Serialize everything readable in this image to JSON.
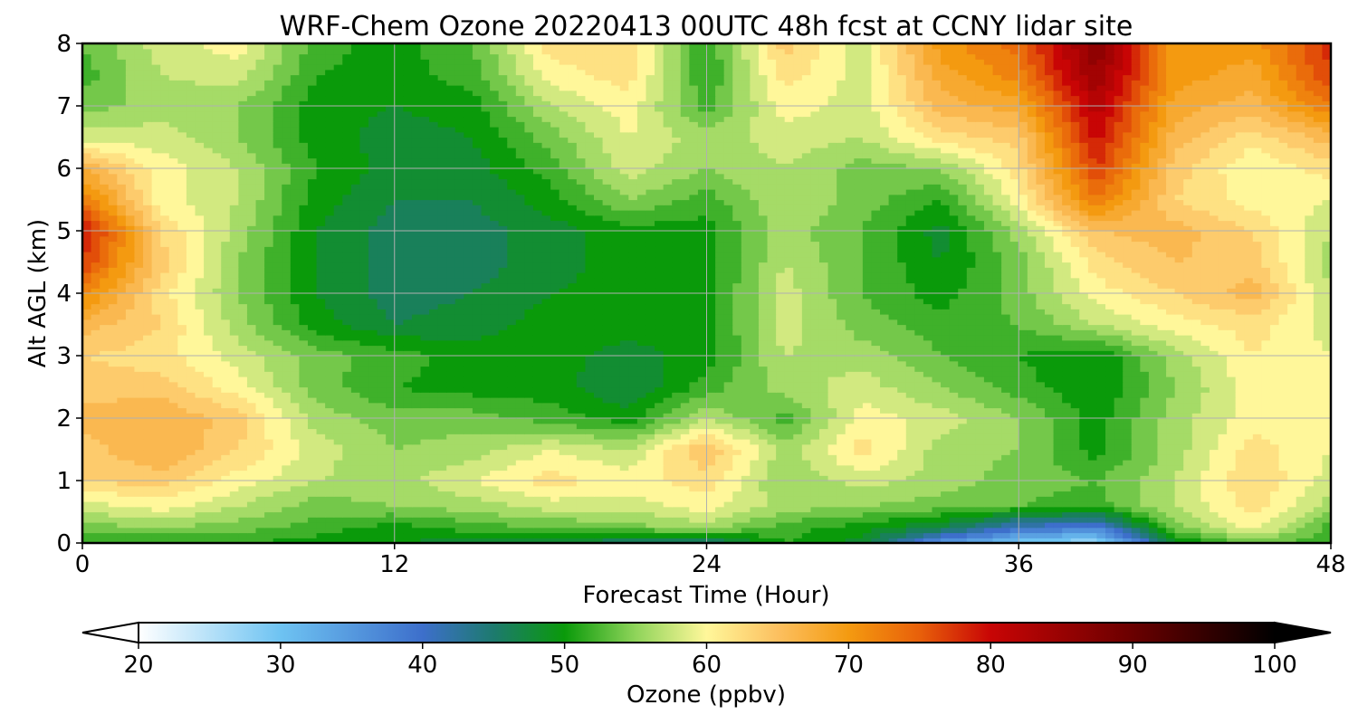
{
  "chart_data": {
    "type": "heatmap",
    "title": "WRF-Chem Ozone  20220413 00UTC 48h fcst at CCNY lidar site",
    "xlabel": "Forecast Time (Hour)",
    "ylabel": "Alt AGL (km)",
    "xlim": [
      0,
      48
    ],
    "ylim": [
      0,
      8
    ],
    "xticks": [
      0,
      12,
      24,
      36,
      48
    ],
    "yticks": [
      0,
      1,
      2,
      3,
      4,
      5,
      6,
      7,
      8
    ],
    "grid": true,
    "colorbar": {
      "label": "Ozone  (ppbv)",
      "range": [
        20,
        100
      ],
      "ticks": [
        20,
        30,
        40,
        50,
        60,
        70,
        80,
        90,
        100
      ],
      "extend": "both",
      "stops": [
        {
          "v": 20,
          "c": "#ffffff"
        },
        {
          "v": 30,
          "c": "#6ec3f2"
        },
        {
          "v": 40,
          "c": "#3d6fcb"
        },
        {
          "v": 45,
          "c": "#1d7a6e"
        },
        {
          "v": 50,
          "c": "#0a9a0a"
        },
        {
          "v": 55,
          "c": "#8fd45a"
        },
        {
          "v": 60,
          "c": "#fff79a"
        },
        {
          "v": 65,
          "c": "#fcc060"
        },
        {
          "v": 70,
          "c": "#f49a10"
        },
        {
          "v": 75,
          "c": "#e8600a"
        },
        {
          "v": 80,
          "c": "#c80505"
        },
        {
          "v": 90,
          "c": "#6a0000"
        },
        {
          "v": 100,
          "c": "#000000"
        }
      ]
    },
    "z_levels_km": [
      0,
      0.25,
      0.6,
      1,
      1.5,
      2,
      2.5,
      3,
      3.5,
      4,
      4.5,
      5,
      5.5,
      6,
      6.5,
      7,
      7.5,
      8
    ],
    "z_hours": [
      0,
      3,
      6,
      9,
      12,
      15,
      18,
      21,
      24,
      27,
      30,
      33,
      36,
      39,
      42,
      45,
      48
    ],
    "ozone_ppbv": [
      [
        51,
        51,
        51,
        50,
        49,
        48,
        47,
        45,
        44,
        51,
        48,
        35,
        29,
        26,
        48,
        54,
        51
      ],
      [
        54,
        55,
        54,
        52,
        50,
        52,
        53,
        54,
        56,
        52,
        50,
        47,
        40,
        38,
        54,
        60,
        52
      ],
      [
        58,
        60,
        57,
        54,
        55,
        56,
        58,
        58,
        60,
        56,
        55,
        54,
        53,
        52,
        57,
        62,
        56
      ],
      [
        63,
        64,
        60,
        57,
        56,
        59,
        62,
        60,
        62,
        55,
        58,
        56,
        54,
        53,
        57,
        63,
        58
      ],
      [
        64,
        67,
        63,
        58,
        55,
        56,
        59,
        57,
        65,
        56,
        62,
        56,
        55,
        50,
        56,
        62,
        59
      ],
      [
        66,
        67,
        64,
        56,
        54,
        54,
        52,
        50,
        57,
        52,
        60,
        58,
        55,
        50,
        56,
        60,
        59
      ],
      [
        64,
        64,
        60,
        54,
        51,
        50,
        50,
        47,
        52,
        56,
        58,
        55,
        52,
        49,
        55,
        60,
        60
      ],
      [
        63,
        62,
        58,
        54,
        52,
        50,
        50,
        48,
        50,
        57,
        56,
        53,
        51,
        49,
        56,
        61,
        59
      ],
      [
        66,
        63,
        56,
        50,
        47,
        48,
        50,
        50,
        50,
        58,
        54,
        52,
        53,
        57,
        60,
        62,
        58
      ],
      [
        72,
        62,
        55,
        49,
        46,
        47,
        49,
        50,
        50,
        58,
        53,
        50,
        54,
        60,
        63,
        66,
        57
      ],
      [
        77,
        64,
        55,
        49,
        46,
        46,
        48,
        50,
        50,
        57,
        53,
        49,
        54,
        62,
        65,
        64,
        56
      ],
      [
        80,
        63,
        56,
        49,
        46,
        46,
        48,
        50,
        50,
        56,
        53,
        48,
        56,
        65,
        66,
        63,
        57
      ],
      [
        73,
        60,
        57,
        50,
        47,
        47,
        50,
        55,
        52,
        57,
        54,
        51,
        60,
        73,
        63,
        60,
        59
      ],
      [
        67,
        60,
        57,
        51,
        48,
        48,
        52,
        58,
        55,
        57,
        54,
        55,
        62,
        77,
        64,
        59,
        62
      ],
      [
        58,
        58,
        55,
        50,
        48,
        49,
        54,
        59,
        56,
        58,
        57,
        62,
        64,
        80,
        66,
        62,
        66
      ],
      [
        54,
        56,
        55,
        50,
        49,
        50,
        57,
        60,
        52,
        60,
        58,
        66,
        68,
        82,
        68,
        66,
        73
      ],
      [
        52,
        57,
        58,
        51,
        50,
        52,
        60,
        62,
        51,
        62,
        58,
        68,
        72,
        85,
        70,
        68,
        77
      ],
      [
        53,
        58,
        60,
        52,
        50,
        53,
        62,
        63,
        51,
        64,
        58,
        70,
        74,
        87,
        70,
        70,
        78
      ]
    ]
  }
}
